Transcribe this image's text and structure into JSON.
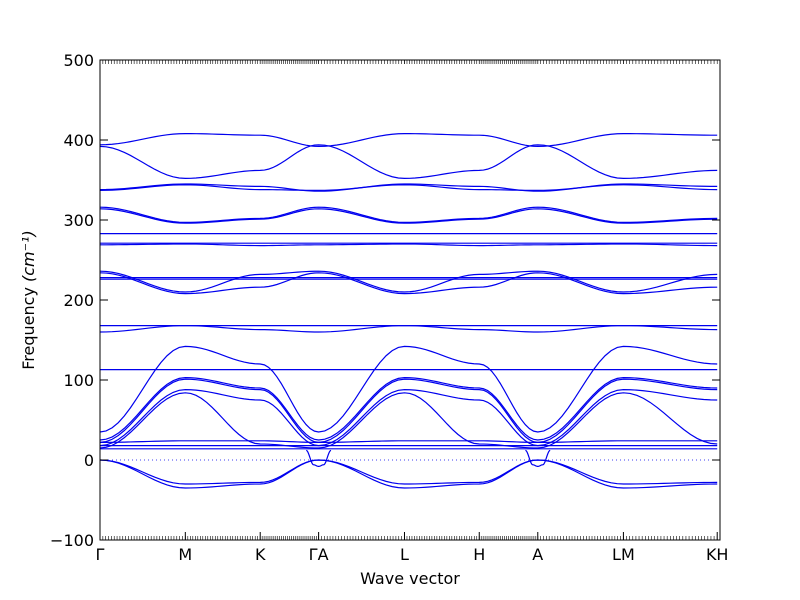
{
  "chart_data": {
    "type": "line",
    "title": "",
    "xlabel": "Wave vector",
    "ylabel": "Frequency",
    "ylabel_unit": "(cm⁻¹)",
    "ylim": [
      -100,
      500
    ],
    "yticks": [
      -100,
      0,
      100,
      200,
      300,
      400,
      500
    ],
    "xlim": [
      0,
      1
    ],
    "grid": false,
    "legend": "none",
    "series_color": "#0000ee",
    "zero_line_color": "#0000ee",
    "segment_names": [
      "Γ-M",
      "M-K",
      "K-Γ",
      "A-L",
      "L-H",
      "H-A",
      "L-M",
      "K-H"
    ],
    "xticks": [
      {
        "label": "Γ",
        "x": 0.0
      },
      {
        "label": "M",
        "x": 0.1376
      },
      {
        "label": "K",
        "x": 0.2584
      },
      {
        "label": "ΓA",
        "x": 0.3526
      },
      {
        "label": "L",
        "x": 0.4911
      },
      {
        "label": "H",
        "x": 0.6117
      },
      {
        "label": "A",
        "x": 0.7061
      },
      {
        "label": "LM",
        "x": 0.8442
      },
      {
        "label": "KH",
        "x": 0.9955
      }
    ],
    "branches": {
      "gamma_points": [
        392,
        392,
        338,
        316,
        283,
        271,
        268,
        236,
        228,
        168,
        160,
        113,
        35,
        22,
        18,
        0,
        0,
        0
      ],
      "m_points": [
        408,
        352,
        345,
        344,
        297,
        283,
        271,
        268,
        232,
        226,
        210,
        168,
        160,
        142,
        113,
        103,
        88,
        85,
        24,
        14,
        -30,
        -35
      ],
      "k_points": [
        406,
        362,
        342,
        302,
        283,
        271,
        268,
        236,
        228,
        216,
        168,
        160,
        118,
        113,
        90,
        75,
        18,
        12,
        -28
      ]
    }
  }
}
